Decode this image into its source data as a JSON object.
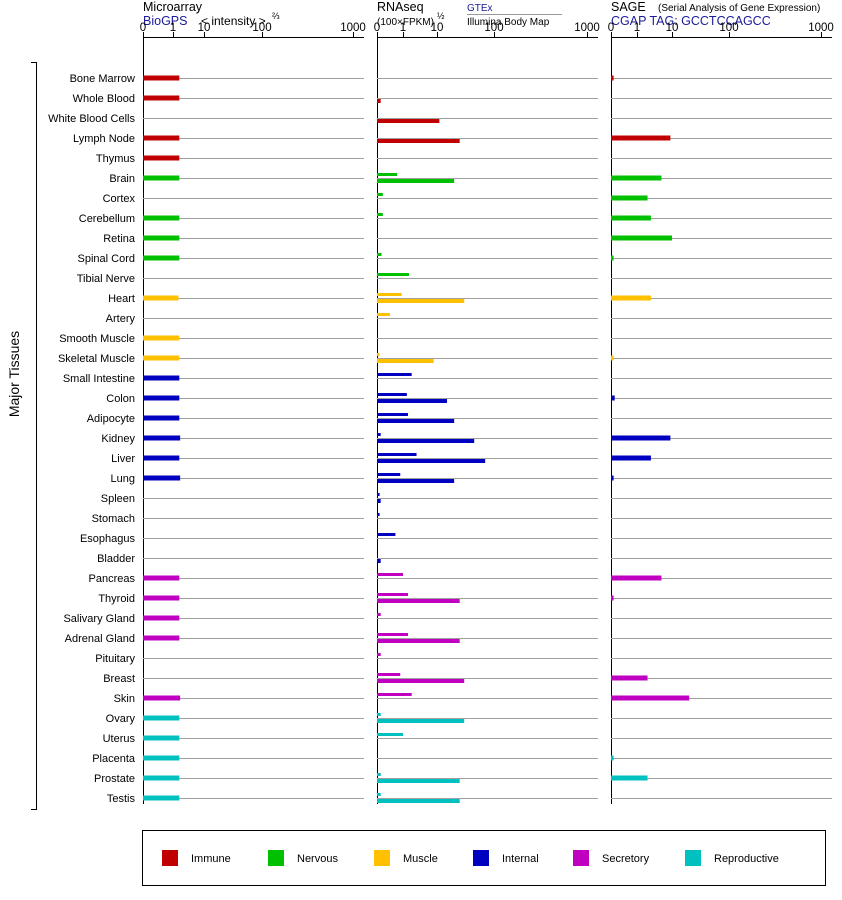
{
  "panels": {
    "microarray": {
      "title": "Microarray",
      "source": "BioGPS",
      "unit_label": "< intensity >",
      "unit_exp": "⅔"
    },
    "rnaseq": {
      "title": "RNAseq",
      "unit_label": "(100×FPKM)",
      "unit_exp": "½",
      "legend_gtex": "GTEx",
      "legend_illumina": "Illumina Body Map"
    },
    "sage": {
      "title": "SAGE",
      "subtitle": "(Serial Analysis of Gene Expression)",
      "tag": "CGAP TAG: GCCTCCAGCC"
    }
  },
  "axis": {
    "ticks": [
      "0",
      "1",
      "10",
      "100",
      "1000"
    ]
  },
  "side_label": "Major Tissues",
  "colors": {
    "Immune": "#c00000",
    "Nervous": "#00c000",
    "Muscle": "#ffc000",
    "Internal": "#0000c0",
    "Secretory": "#c000c0",
    "Reproductive": "#00c0c0"
  },
  "legend": [
    "Immune",
    "Nervous",
    "Muscle",
    "Internal",
    "Secretory",
    "Reproductive"
  ],
  "chart_data": {
    "type": "bar",
    "scale": "x axis labelled 0, 1, 10, 100, 1000 (root-compressed)",
    "categories": [
      "Bone Marrow",
      "Whole Blood",
      "White Blood Cells",
      "Lymph Node",
      "Thymus",
      "Brain",
      "Cortex",
      "Cerebellum",
      "Retina",
      "Spinal Cord",
      "Tibial Nerve",
      "Heart",
      "Artery",
      "Smooth Muscle",
      "Skeletal Muscle",
      "Small Intestine",
      "Colon",
      "Adipocyte",
      "Kidney",
      "Liver",
      "Lung",
      "Spleen",
      "Stomach",
      "Esophagus",
      "Bladder",
      "Pancreas",
      "Thyroid",
      "Salivary Gland",
      "Adrenal Gland",
      "Pituitary",
      "Breast",
      "Skin",
      "Ovary",
      "Uterus",
      "Placenta",
      "Prostate",
      "Testis"
    ],
    "groups": [
      "Immune",
      "Immune",
      "Immune",
      "Immune",
      "Immune",
      "Nervous",
      "Nervous",
      "Nervous",
      "Nervous",
      "Nervous",
      "Nervous",
      "Muscle",
      "Muscle",
      "Muscle",
      "Muscle",
      "Internal",
      "Internal",
      "Internal",
      "Internal",
      "Internal",
      "Internal",
      "Internal",
      "Internal",
      "Internal",
      "Internal",
      "Secretory",
      "Secretory",
      "Secretory",
      "Secretory",
      "Secretory",
      "Secretory",
      "Secretory",
      "Reproductive",
      "Reproductive",
      "Reproductive",
      "Reproductive",
      "Reproductive"
    ],
    "series": [
      {
        "panel": "Microarray",
        "values": [
          1.6,
          1.6,
          null,
          1.6,
          1.6,
          1.6,
          null,
          1.6,
          1.6,
          1.6,
          null,
          1.5,
          null,
          1.6,
          1.6,
          1.6,
          1.6,
          1.6,
          1.7,
          1.6,
          1.7,
          null,
          null,
          null,
          null,
          1.6,
          1.6,
          1.6,
          1.6,
          null,
          null,
          1.7,
          1.6,
          1.6,
          1.6,
          1.6,
          1.6
        ]
      },
      {
        "panel": "RNAseq",
        "name": "GTEx",
        "values": [
          null,
          null,
          null,
          null,
          null,
          0.6,
          0.05,
          0.05,
          null,
          0.03,
          1.5,
          0.9,
          0.25,
          null,
          0.01,
          1.8,
          1.3,
          1.4,
          0.02,
          2.5,
          0.8,
          0.01,
          0.01,
          0.5,
          null,
          1.0,
          1.4,
          0.02,
          1.4,
          0.02,
          0.8,
          1.8,
          0.02,
          1.0,
          null,
          0.02,
          0.02
        ]
      },
      {
        "panel": "RNAseq",
        "name": "Illumina Body Map",
        "values": [
          null,
          0.02,
          11,
          25,
          null,
          20,
          null,
          null,
          null,
          null,
          null,
          30,
          null,
          null,
          8,
          null,
          15,
          20,
          45,
          70,
          20,
          0.02,
          null,
          null,
          0.02,
          null,
          25,
          null,
          25,
          null,
          30,
          null,
          30,
          null,
          null,
          25,
          25
        ]
      },
      {
        "panel": "SAGE",
        "values": [
          0.01,
          null,
          null,
          9,
          null,
          5,
          2,
          2.5,
          10,
          0.01,
          null,
          2.5,
          null,
          null,
          0.01,
          null,
          0.02,
          null,
          9,
          2.5,
          0.01,
          null,
          null,
          null,
          null,
          5,
          0.01,
          null,
          null,
          null,
          2,
          20,
          null,
          null,
          0.01,
          2,
          null
        ]
      }
    ]
  }
}
